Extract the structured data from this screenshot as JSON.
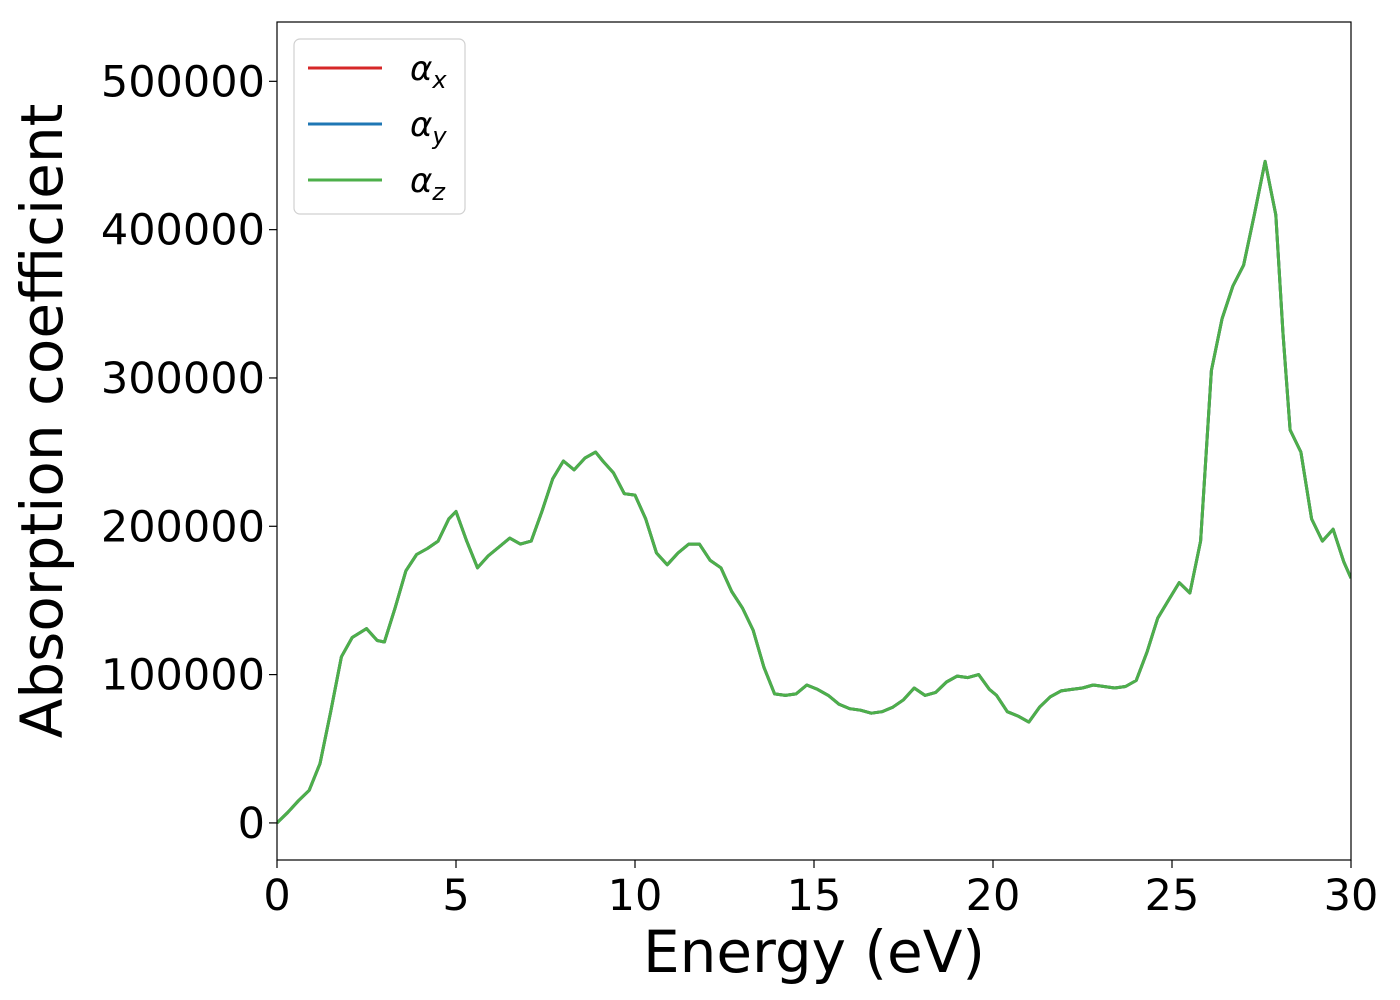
{
  "chart_data": {
    "type": "line",
    "xlabel": "Energy (eV)",
    "ylabel": "Absorption coefficient",
    "xlim": [
      0,
      30
    ],
    "ylim": [
      -25000,
      540000
    ],
    "xticks": [
      "0",
      "5",
      "10",
      "15",
      "20",
      "25",
      "30"
    ],
    "yticks": [
      "0",
      "100000",
      "200000",
      "300000",
      "400000",
      "500000"
    ],
    "grid": false,
    "legend_position": "top-left",
    "series": [
      {
        "name": "α",
        "subscript": "x",
        "color": "#d62728",
        "x": [
          0,
          0.3,
          0.6,
          0.9,
          1.2,
          1.5,
          1.8,
          2.1,
          2.5,
          2.8,
          3.0,
          3.3,
          3.6,
          3.9,
          4.2,
          4.5,
          4.8,
          5.0,
          5.3,
          5.6,
          5.9,
          6.2,
          6.5,
          6.8,
          7.1,
          7.4,
          7.7,
          8.0,
          8.3,
          8.6,
          8.9,
          9.1,
          9.4,
          9.7,
          10.0,
          10.3,
          10.6,
          10.9,
          11.2,
          11.5,
          11.8,
          12.1,
          12.4,
          12.7,
          13.0,
          13.3,
          13.6,
          13.9,
          14.2,
          14.5,
          14.8,
          15.1,
          15.4,
          15.7,
          16.0,
          16.3,
          16.6,
          16.9,
          17.2,
          17.5,
          17.8,
          18.1,
          18.4,
          18.7,
          19.0,
          19.3,
          19.6,
          19.9,
          20.1,
          20.4,
          20.7,
          21.0,
          21.3,
          21.6,
          21.9,
          22.2,
          22.5,
          22.8,
          23.1,
          23.4,
          23.7,
          24.0,
          24.3,
          24.6,
          24.9,
          25.2,
          25.5,
          25.8,
          26.1,
          26.4,
          26.7,
          27.0,
          27.3,
          27.6,
          27.9,
          28.1,
          28.3,
          28.6,
          28.9,
          29.2,
          29.5,
          29.8,
          30.0
        ],
        "values": [
          0,
          7000,
          15000,
          22000,
          40000,
          75000,
          112000,
          125000,
          131000,
          123000,
          122000,
          145000,
          170000,
          181000,
          185000,
          190000,
          205000,
          210000,
          190000,
          172000,
          180000,
          186000,
          192000,
          188000,
          190000,
          210000,
          232000,
          244000,
          238000,
          246000,
          250000,
          244000,
          236000,
          222000,
          221000,
          205000,
          182000,
          174000,
          182000,
          188000,
          188000,
          177000,
          172000,
          156000,
          145000,
          130000,
          105000,
          87000,
          86000,
          87000,
          93000,
          90000,
          86000,
          80000,
          77000,
          76000,
          74000,
          75000,
          78000,
          83000,
          91000,
          86000,
          88000,
          95000,
          99000,
          98000,
          100000,
          90000,
          86000,
          75000,
          72000,
          68000,
          78000,
          85000,
          89000,
          90000,
          91000,
          93000,
          92000,
          91000,
          92000,
          96000,
          115000,
          138000,
          150000,
          162000,
          155000,
          190000,
          305000,
          340000,
          362000,
          376000,
          410000,
          446000,
          410000,
          330000,
          265000,
          250000,
          205000,
          190000,
          198000,
          176000,
          165000
        ]
      },
      {
        "name": "α",
        "subscript": "y",
        "color": "#1f77b4",
        "x": [
          0,
          0.3,
          0.6,
          0.9,
          1.2,
          1.5,
          1.8,
          2.1,
          2.5,
          2.8,
          3.0,
          3.3,
          3.6,
          3.9,
          4.2,
          4.5,
          4.8,
          5.0,
          5.3,
          5.6,
          5.9,
          6.2,
          6.5,
          6.8,
          7.1,
          7.4,
          7.7,
          8.0,
          8.3,
          8.6,
          8.9,
          9.1,
          9.4,
          9.7,
          10.0,
          10.3,
          10.6,
          10.9,
          11.2,
          11.5,
          11.8,
          12.1,
          12.4,
          12.7,
          13.0,
          13.3,
          13.6,
          13.9,
          14.2,
          14.5,
          14.8,
          15.1,
          15.4,
          15.7,
          16.0,
          16.3,
          16.6,
          16.9,
          17.2,
          17.5,
          17.8,
          18.1,
          18.4,
          18.7,
          19.0,
          19.3,
          19.6,
          19.9,
          20.1,
          20.4,
          20.7,
          21.0,
          21.3,
          21.6,
          21.9,
          22.2,
          22.5,
          22.8,
          23.1,
          23.4,
          23.7,
          24.0,
          24.3,
          24.6,
          24.9,
          25.2,
          25.5,
          25.8,
          26.1,
          26.4,
          26.7,
          27.0,
          27.3,
          27.6,
          27.9,
          28.1,
          28.3,
          28.6,
          28.9,
          29.2,
          29.5,
          29.8,
          30.0
        ],
        "values": [
          0,
          7000,
          15000,
          22000,
          40000,
          75000,
          112000,
          125000,
          131000,
          123000,
          122000,
          145000,
          170000,
          181000,
          185000,
          190000,
          205000,
          210000,
          190000,
          172000,
          180000,
          186000,
          192000,
          188000,
          190000,
          210000,
          232000,
          244000,
          238000,
          246000,
          250000,
          244000,
          236000,
          222000,
          221000,
          205000,
          182000,
          174000,
          182000,
          188000,
          188000,
          177000,
          172000,
          156000,
          145000,
          130000,
          105000,
          87000,
          86000,
          87000,
          93000,
          90000,
          86000,
          80000,
          77000,
          76000,
          74000,
          75000,
          78000,
          83000,
          91000,
          86000,
          88000,
          95000,
          99000,
          98000,
          100000,
          90000,
          86000,
          75000,
          72000,
          68000,
          78000,
          85000,
          89000,
          90000,
          91000,
          93000,
          92000,
          91000,
          92000,
          96000,
          115000,
          138000,
          150000,
          162000,
          155000,
          190000,
          305000,
          340000,
          362000,
          376000,
          410000,
          446000,
          410000,
          330000,
          265000,
          250000,
          205000,
          190000,
          198000,
          176000,
          165000
        ]
      },
      {
        "name": "α",
        "subscript": "z",
        "color": "#4daf4a",
        "x": [
          0,
          0.3,
          0.6,
          0.9,
          1.2,
          1.5,
          1.8,
          2.1,
          2.5,
          2.8,
          3.0,
          3.3,
          3.6,
          3.9,
          4.2,
          4.5,
          4.8,
          5.0,
          5.3,
          5.6,
          5.9,
          6.2,
          6.5,
          6.8,
          7.1,
          7.4,
          7.7,
          8.0,
          8.3,
          8.6,
          8.9,
          9.1,
          9.4,
          9.7,
          10.0,
          10.3,
          10.6,
          10.9,
          11.2,
          11.5,
          11.8,
          12.1,
          12.4,
          12.7,
          13.0,
          13.3,
          13.6,
          13.9,
          14.2,
          14.5,
          14.8,
          15.1,
          15.4,
          15.7,
          16.0,
          16.3,
          16.6,
          16.9,
          17.2,
          17.5,
          17.8,
          18.1,
          18.4,
          18.7,
          19.0,
          19.3,
          19.6,
          19.9,
          20.1,
          20.4,
          20.7,
          21.0,
          21.3,
          21.6,
          21.9,
          22.2,
          22.5,
          22.8,
          23.1,
          23.4,
          23.7,
          24.0,
          24.3,
          24.6,
          24.9,
          25.2,
          25.5,
          25.8,
          26.1,
          26.4,
          26.7,
          27.0,
          27.3,
          27.6,
          27.9,
          28.1,
          28.3,
          28.6,
          28.9,
          29.2,
          29.5,
          29.8,
          30.0
        ],
        "values": [
          0,
          7000,
          15000,
          22000,
          40000,
          75000,
          112000,
          125000,
          131000,
          123000,
          122000,
          145000,
          170000,
          181000,
          185000,
          190000,
          205000,
          210000,
          190000,
          172000,
          180000,
          186000,
          192000,
          188000,
          190000,
          210000,
          232000,
          244000,
          238000,
          246000,
          250000,
          244000,
          236000,
          222000,
          221000,
          205000,
          182000,
          174000,
          182000,
          188000,
          188000,
          177000,
          172000,
          156000,
          145000,
          130000,
          105000,
          87000,
          86000,
          87000,
          93000,
          90000,
          86000,
          80000,
          77000,
          76000,
          74000,
          75000,
          78000,
          83000,
          91000,
          86000,
          88000,
          95000,
          99000,
          98000,
          100000,
          90000,
          86000,
          75000,
          72000,
          68000,
          78000,
          85000,
          89000,
          90000,
          91000,
          93000,
          92000,
          91000,
          92000,
          96000,
          115000,
          138000,
          150000,
          162000,
          155000,
          190000,
          305000,
          340000,
          362000,
          376000,
          410000,
          446000,
          410000,
          330000,
          265000,
          250000,
          205000,
          190000,
          198000,
          176000,
          165000
        ]
      }
    ]
  }
}
